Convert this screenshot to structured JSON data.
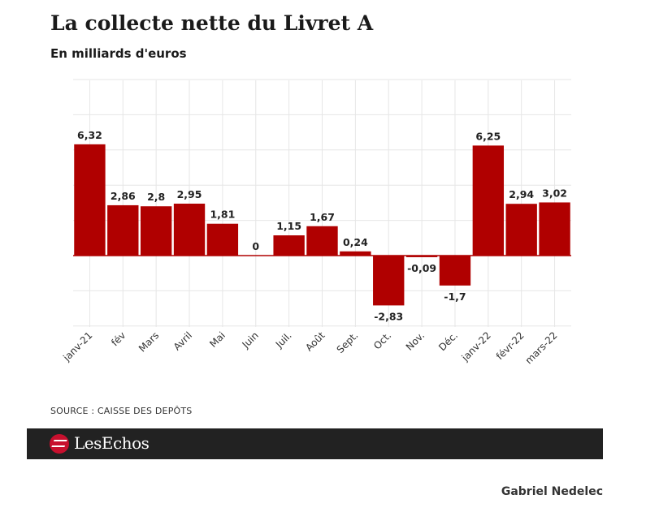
{
  "title": "La collecte nette du Livret A",
  "subtitle": "En milliards d'euros",
  "source": "SOURCE : CAISSE DES DEPÔTS",
  "brand": "LesEchos",
  "author": "Gabriel Nedelec",
  "colors": {
    "bar": "#b00000",
    "grid": "#e6e6e6",
    "footer": "#222222"
  },
  "chart_data": {
    "type": "bar",
    "categories": [
      "janv-21",
      "fév",
      "Mars",
      "Avril",
      "Mai",
      "Juin",
      "Juil.",
      "Août",
      "Sept.",
      "Oct.",
      "Nov.",
      "Déc.",
      "janv-22",
      "févr-22",
      "mars-22"
    ],
    "values": [
      6.32,
      2.86,
      2.8,
      2.95,
      1.81,
      0,
      1.15,
      1.67,
      0.24,
      -2.83,
      -0.09,
      -1.7,
      6.25,
      2.94,
      3.02
    ],
    "data_labels": [
      "6,32",
      "2,86",
      "2,8",
      "2,95",
      "1,81",
      "0",
      "1,15",
      "1,67",
      "0,24",
      "-2,83",
      "-0,09",
      "-1,7",
      "6,25",
      "2,94",
      "3,02"
    ],
    "ylim": [
      -4,
      10
    ],
    "grid": true,
    "xlabel": "",
    "ylabel": ""
  }
}
